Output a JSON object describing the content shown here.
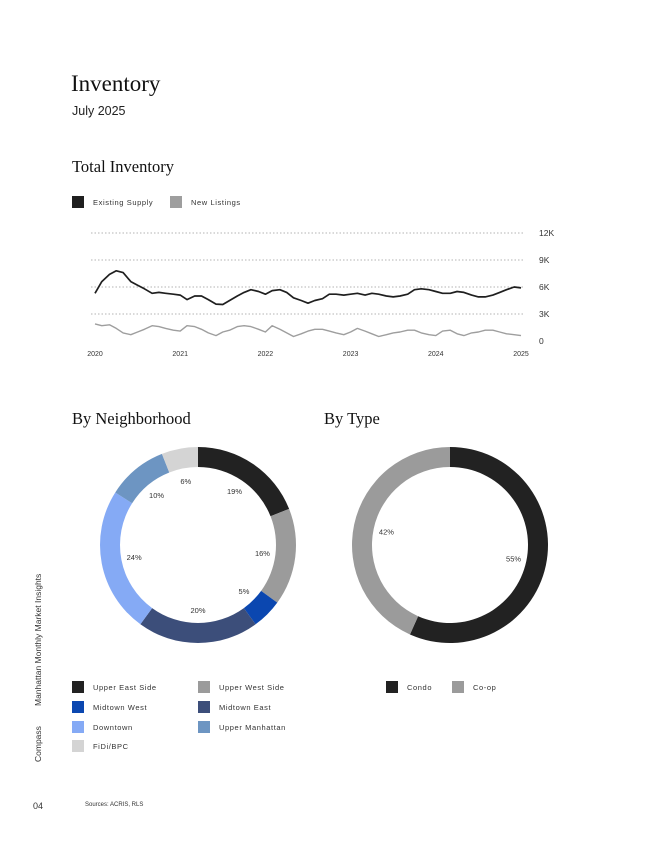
{
  "page": {
    "title": "Inventory",
    "subtitle": "July 2025",
    "page_number": "04",
    "sources": "Sources: ACRIS, RLS",
    "side_labels": [
      "Manhattan Monthly Market Insights",
      "Compass"
    ]
  },
  "chart_data": [
    {
      "type": "line",
      "title": "Total Inventory",
      "ylim": [
        0,
        12000
      ],
      "y_ticks": [
        0,
        3000,
        6000,
        9000,
        12000
      ],
      "y_tick_labels": [
        "0",
        "3K",
        "6K",
        "9K",
        "12K"
      ],
      "x_tick_labels": [
        "2020",
        "2021",
        "2022",
        "2023",
        "2024",
        "2025"
      ],
      "x_range": [
        2020.0,
        2025.0
      ],
      "grid": "horizontal-dotted",
      "legend_position": "top-left",
      "series": [
        {
          "name": "Existing Supply",
          "color": "#1f1f1f",
          "x": [
            2020.0,
            2020.08,
            2020.17,
            2020.25,
            2020.33,
            2020.42,
            2020.5,
            2020.58,
            2020.67,
            2020.75,
            2020.83,
            2020.92,
            2021.0,
            2021.08,
            2021.17,
            2021.25,
            2021.33,
            2021.42,
            2021.5,
            2021.58,
            2021.67,
            2021.75,
            2021.83,
            2021.92,
            2022.0,
            2022.08,
            2022.17,
            2022.25,
            2022.33,
            2022.42,
            2022.5,
            2022.58,
            2022.67,
            2022.75,
            2022.83,
            2022.92,
            2023.0,
            2023.08,
            2023.17,
            2023.25,
            2023.33,
            2023.42,
            2023.5,
            2023.58,
            2023.67,
            2023.75,
            2023.83,
            2023.92,
            2024.0,
            2024.08,
            2024.17,
            2024.25,
            2024.33,
            2024.42,
            2024.5,
            2024.58,
            2024.67,
            2024.75,
            2024.83,
            2024.92,
            2025.0
          ],
          "values": [
            5300,
            6600,
            7400,
            7800,
            7600,
            6600,
            6200,
            5800,
            5300,
            5400,
            5300,
            5200,
            5100,
            4600,
            5000,
            5000,
            4600,
            4100,
            4050,
            4500,
            5000,
            5400,
            5700,
            5500,
            5200,
            5600,
            5700,
            5400,
            4800,
            4500,
            4200,
            4500,
            4700,
            5200,
            5200,
            5100,
            5200,
            5300,
            5100,
            5300,
            5200,
            5000,
            4900,
            5000,
            5200,
            5700,
            5800,
            5700,
            5500,
            5300,
            5300,
            5500,
            5400,
            5100,
            4900,
            4900,
            5100,
            5400,
            5700,
            6000,
            5900
          ]
        },
        {
          "name": "New Listings",
          "color": "#9e9e9e",
          "x": [
            2020.0,
            2020.08,
            2020.17,
            2020.25,
            2020.33,
            2020.42,
            2020.5,
            2020.58,
            2020.67,
            2020.75,
            2020.83,
            2020.92,
            2021.0,
            2021.08,
            2021.17,
            2021.25,
            2021.33,
            2021.42,
            2021.5,
            2021.58,
            2021.67,
            2021.75,
            2021.83,
            2021.92,
            2022.0,
            2022.08,
            2022.17,
            2022.25,
            2022.33,
            2022.42,
            2022.5,
            2022.58,
            2022.67,
            2022.75,
            2022.83,
            2022.92,
            2023.0,
            2023.08,
            2023.17,
            2023.25,
            2023.33,
            2023.42,
            2023.5,
            2023.58,
            2023.67,
            2023.75,
            2023.83,
            2023.92,
            2024.0,
            2024.08,
            2024.17,
            2024.25,
            2024.33,
            2024.42,
            2024.5,
            2024.58,
            2024.67,
            2024.75,
            2024.83,
            2024.92,
            2025.0
          ],
          "values": [
            1900,
            1700,
            1800,
            1400,
            900,
            700,
            1000,
            1300,
            1700,
            1600,
            1400,
            1200,
            1100,
            1700,
            1600,
            1300,
            900,
            600,
            1000,
            1200,
            1600,
            1700,
            1600,
            1300,
            1000,
            1700,
            1300,
            900,
            500,
            800,
            1100,
            1300,
            1300,
            1100,
            900,
            700,
            1000,
            1400,
            1100,
            800,
            500,
            700,
            900,
            1000,
            1200,
            1200,
            900,
            700,
            600,
            1100,
            1200,
            800,
            600,
            900,
            1000,
            1200,
            1200,
            1000,
            800,
            700,
            600
          ]
        }
      ]
    },
    {
      "type": "pie",
      "title": "By Neighborhood",
      "legend_position": "bottom",
      "slices": [
        {
          "label": "Upper East Side",
          "value": 19,
          "display": "19%",
          "color": "#222222"
        },
        {
          "label": "Upper West Side",
          "value": 16,
          "display": "16%",
          "color": "#9b9b9b"
        },
        {
          "label": "Midtown West",
          "value": 5,
          "display": "5%",
          "color": "#0b47b0"
        },
        {
          "label": "Midtown East",
          "value": 20,
          "display": "20%",
          "color": "#3c4e7a"
        },
        {
          "label": "Downtown",
          "value": 24,
          "display": "24%",
          "color": "#85aaf5"
        },
        {
          "label": "Upper Manhattan",
          "value": 10,
          "display": "10%",
          "color": "#6d95c2"
        },
        {
          "label": "FiDi/BPC",
          "value": 6,
          "display": "6%",
          "color": "#d4d4d4"
        }
      ]
    },
    {
      "type": "pie",
      "title": "By Type",
      "legend_position": "bottom",
      "slices": [
        {
          "label": "Condo",
          "value": 55,
          "display": "55%",
          "color": "#222222"
        },
        {
          "label": "Co-op",
          "value": 42,
          "display": "42%",
          "color": "#9b9b9b"
        }
      ]
    }
  ]
}
